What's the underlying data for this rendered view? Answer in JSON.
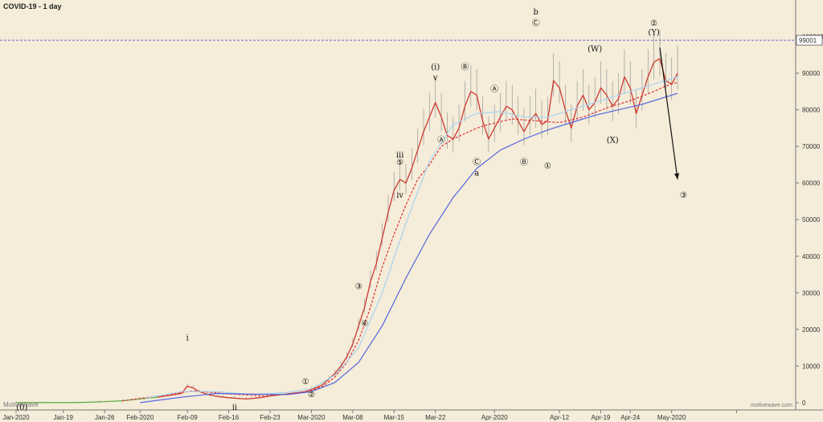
{
  "chart_data": {
    "type": "line",
    "title": "COVID-19 - 1 day",
    "watermark": "MotiveWave",
    "watermark_right": "motivewave.com",
    "ylim": [
      -2000,
      110000
    ],
    "xlim": [
      0,
      132
    ],
    "y_ticks": [
      0,
      10000,
      20000,
      30000,
      40000,
      50000,
      60000,
      70000,
      80000,
      90000,
      100000
    ],
    "y_tick_labels": [
      "0",
      "10000",
      "20000",
      "30000",
      "40000",
      "50000",
      "60000",
      "70000",
      "80000",
      "90000",
      "100000"
    ],
    "x_ticks": [
      {
        "t": 0,
        "label": "Jan-2020"
      },
      {
        "t": 8,
        "label": "Jan-19"
      },
      {
        "t": 15,
        "label": "Jan-26"
      },
      {
        "t": 21,
        "label": "Feb-2020"
      },
      {
        "t": 29,
        "label": "Feb-09"
      },
      {
        "t": 36,
        "label": "Feb-16"
      },
      {
        "t": 43,
        "label": "Feb-23"
      },
      {
        "t": 50,
        "label": "Mar-2020"
      },
      {
        "t": 57,
        "label": "Mar-08"
      },
      {
        "t": 64,
        "label": "Mar-15"
      },
      {
        "t": 71,
        "label": "Mar-22"
      },
      {
        "t": 81,
        "label": "Apr-2020"
      },
      {
        "t": 92,
        "label": "Apr-12"
      },
      {
        "t": 99,
        "label": "Apr-19"
      },
      {
        "t": 104,
        "label": "Apr-24"
      },
      {
        "t": 111,
        "label": "May-2020"
      },
      {
        "t": 122,
        "label": ""
      }
    ],
    "price_line": {
      "value": 99001,
      "label": "99001",
      "color": "#6666cc"
    },
    "series": [
      {
        "key": "price",
        "color": "#55aa44",
        "x": [
          0,
          5,
          10,
          14,
          18,
          21,
          24,
          28,
          29,
          30,
          31,
          33,
          35,
          37,
          39,
          41,
          43,
          45,
          47,
          49,
          50,
          51,
          52,
          53,
          54,
          55,
          56,
          57,
          58,
          59,
          60,
          61,
          62,
          63,
          64,
          65,
          66,
          67,
          68,
          69,
          70,
          71,
          72,
          73,
          74,
          75,
          76,
          77,
          78,
          79,
          80,
          81,
          82,
          83,
          84,
          85,
          86,
          87,
          88,
          89,
          90,
          91,
          92,
          93,
          94,
          95,
          96,
          97,
          98,
          99,
          100,
          101,
          102,
          103,
          104,
          105,
          106,
          107,
          108,
          109,
          110,
          111,
          112
        ],
        "y": [
          0,
          0,
          0,
          200,
          500,
          1000,
          1500,
          2500,
          4500,
          4000,
          3000,
          2000,
          1500,
          1200,
          1000,
          1300,
          1800,
          2200,
          2600,
          3000,
          3600,
          4200,
          5000,
          6500,
          8000,
          10000,
          12500,
          16000,
          21000,
          26000,
          33000,
          38000,
          45000,
          52000,
          58000,
          61000,
          60000,
          64000,
          69000,
          74000,
          78000,
          82000,
          78000,
          73000,
          72000,
          75000,
          81000,
          85000,
          84000,
          77000,
          72000,
          75000,
          78000,
          81000,
          80000,
          77000,
          74000,
          77000,
          79000,
          76000,
          77000,
          88000,
          86000,
          80000,
          75000,
          81000,
          84000,
          80000,
          82000,
          86000,
          84000,
          81000,
          83000,
          89000,
          86000,
          79000,
          84000,
          89000,
          93000,
          94000,
          88000,
          87000,
          90000
        ]
      },
      {
        "key": "fast-ma",
        "color": "#dd3333",
        "x": [
          24,
          28,
          29,
          30,
          31,
          33,
          35,
          37,
          39,
          41,
          43,
          45,
          47,
          49,
          50,
          51,
          52,
          53,
          54,
          55,
          56,
          57,
          58,
          59,
          60,
          61,
          62,
          63,
          64,
          65,
          66,
          67,
          68,
          69,
          70,
          71,
          72,
          73,
          74,
          75,
          76,
          77,
          78,
          79,
          80,
          81,
          82,
          83,
          84,
          85,
          86,
          87,
          88,
          89,
          90,
          91,
          92,
          93,
          94,
          95,
          96,
          97,
          98,
          99,
          100,
          101,
          102,
          103,
          104,
          105,
          106,
          107,
          108,
          109,
          110,
          111,
          112
        ],
        "y": [
          1500,
          2500,
          4500,
          4000,
          3000,
          2000,
          1500,
          1200,
          1000,
          1300,
          1800,
          2200,
          2600,
          3000,
          3600,
          4200,
          5000,
          6500,
          8000,
          10000,
          12500,
          16000,
          21000,
          26000,
          33000,
          38000,
          45000,
          52000,
          58000,
          61000,
          60000,
          64000,
          69000,
          74000,
          78000,
          82000,
          78000,
          73000,
          72000,
          75000,
          81000,
          85000,
          84000,
          77000,
          72000,
          75000,
          78000,
          81000,
          80000,
          77000,
          74000,
          77000,
          79000,
          76000,
          77000,
          88000,
          86000,
          80000,
          75000,
          81000,
          84000,
          80000,
          82000,
          86000,
          84000,
          81000,
          83000,
          89000,
          86000,
          79000,
          84000,
          89000,
          93000,
          94000,
          88000,
          87000,
          90000
        ]
      },
      {
        "key": "dotted-ma",
        "color": "#e03030",
        "dashed": true,
        "x": [
          18,
          24,
          30,
          36,
          42,
          48,
          50,
          52,
          54,
          56,
          58,
          60,
          62,
          64,
          66,
          68,
          70,
          72,
          74,
          76,
          78,
          80,
          84,
          88,
          92,
          96,
          100,
          104,
          108,
          110,
          112
        ],
        "y": [
          500,
          1800,
          3200,
          2400,
          1800,
          2600,
          3300,
          4500,
          7000,
          11000,
          17000,
          26000,
          37000,
          46000,
          54000,
          61000,
          65000,
          70000,
          72000,
          73500,
          75000,
          76000,
          77500,
          77000,
          76500,
          78000,
          80500,
          82500,
          85000,
          86500,
          87500
        ]
      },
      {
        "key": "light-ma",
        "color": "#a8d4f0",
        "x": [
          22,
          28,
          34,
          40,
          46,
          50,
          54,
          58,
          62,
          66,
          70,
          74,
          78,
          82,
          86,
          90,
          94,
          98,
          102,
          106,
          110,
          112
        ],
        "y": [
          1200,
          3000,
          3000,
          2200,
          2800,
          3800,
          7500,
          15000,
          30000,
          49000,
          66000,
          76000,
          79000,
          79500,
          78000,
          78000,
          80000,
          82000,
          84000,
          86000,
          88000,
          89000
        ]
      },
      {
        "key": "slow-ma",
        "color": "#5566dd",
        "x": [
          21,
          28,
          34,
          40,
          46,
          50,
          54,
          58,
          62,
          66,
          70,
          74,
          78,
          82,
          86,
          90,
          94,
          98,
          102,
          106,
          110,
          112
        ],
        "y": [
          0,
          1500,
          2500,
          2300,
          2200,
          3000,
          5500,
          11000,
          21000,
          34000,
          46000,
          56000,
          64000,
          69000,
          72000,
          74500,
          76500,
          78500,
          80000,
          81500,
          83500,
          84500
        ]
      }
    ],
    "wave_labels": [
      {
        "t": 1,
        "v": -2000,
        "text": "(0)"
      },
      {
        "t": 29,
        "v": 17000,
        "text": "i"
      },
      {
        "t": 37,
        "v": -2000,
        "text": "ii"
      },
      {
        "t": 49,
        "v": 5000,
        "text": "①",
        "circle": true
      },
      {
        "t": 50,
        "v": 1500,
        "text": "②",
        "circle": true
      },
      {
        "t": 58,
        "v": 31000,
        "text": "③",
        "circle": true
      },
      {
        "t": 59,
        "v": 21000,
        "text": "④",
        "circle": true
      },
      {
        "t": 65,
        "v": 67000,
        "text": "iii"
      },
      {
        "t": 65,
        "v": 65000,
        "text": "⑤",
        "circle": true
      },
      {
        "t": 65,
        "v": 56000,
        "text": "iv"
      },
      {
        "t": 71,
        "v": 91000,
        "text": "(i)"
      },
      {
        "t": 71,
        "v": 88000,
        "text": "v"
      },
      {
        "t": 72,
        "v": 71000,
        "text": "Ⓐ",
        "circle": true
      },
      {
        "t": 76,
        "v": 91000,
        "text": "Ⓑ",
        "circle": true
      },
      {
        "t": 78,
        "v": 65000,
        "text": "Ⓒ",
        "circle": true
      },
      {
        "t": 78,
        "v": 62000,
        "text": "a"
      },
      {
        "t": 81,
        "v": 85000,
        "text": "Ⓐ",
        "circle": true
      },
      {
        "t": 86,
        "v": 65000,
        "text": "Ⓑ",
        "circle": true
      },
      {
        "t": 88,
        "v": 106000,
        "text": "b"
      },
      {
        "t": 88,
        "v": 103000,
        "text": "Ⓒ",
        "circle": true
      },
      {
        "t": 90,
        "v": 64000,
        "text": "①",
        "circle": true
      },
      {
        "t": 98,
        "v": 96000,
        "text": "(W)"
      },
      {
        "t": 101,
        "v": 71000,
        "text": "(X)"
      },
      {
        "t": 108,
        "v": 103000,
        "text": "②",
        "circle": true
      },
      {
        "t": 108,
        "v": 100500,
        "text": "(Y)"
      },
      {
        "t": 113,
        "v": 56000,
        "text": "③",
        "circle": true
      }
    ],
    "projection": {
      "x1": 109,
      "y1": 97000,
      "x2": 112,
      "y2": 61000
    }
  }
}
